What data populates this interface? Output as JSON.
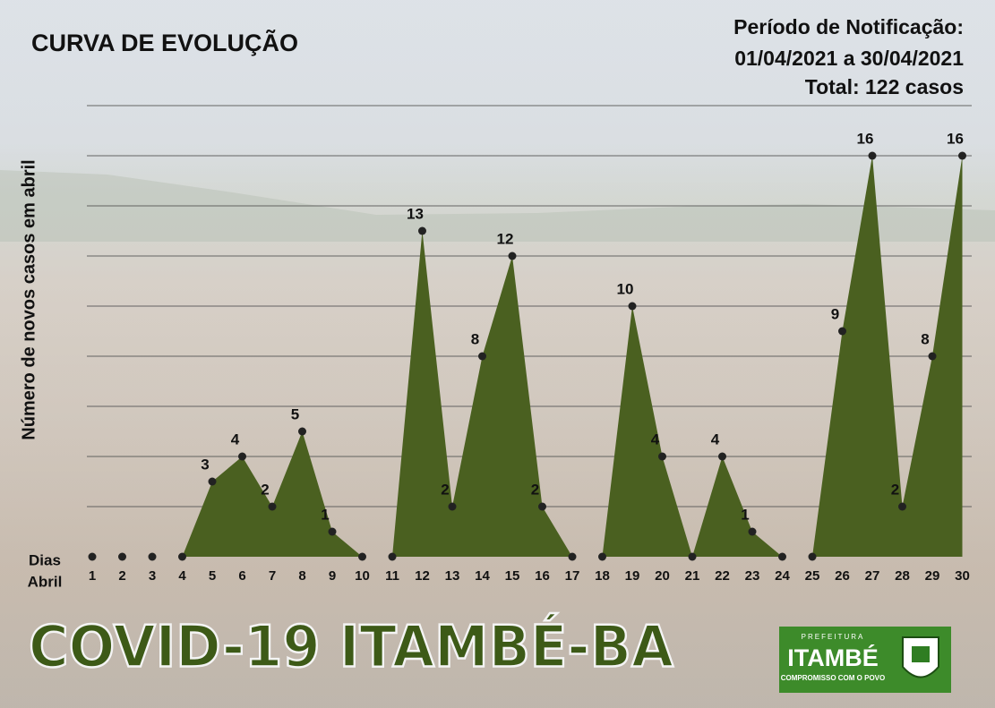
{
  "chart_data": {
    "type": "area",
    "title": "CURVA DE EVOLUÇÃO",
    "subtitle": [
      "Período de Notificação:",
      "01/04/2021 a 30/04/2021",
      "Total: 122 casos"
    ],
    "y_label": "Número de novos casos em abril",
    "x_label": [
      "Dias",
      "Abril"
    ],
    "categories": [
      "1",
      "2",
      "3",
      "4",
      "5",
      "6",
      "7",
      "8",
      "9",
      "10",
      "11",
      "12",
      "13",
      "14",
      "15",
      "16",
      "17",
      "18",
      "19",
      "20",
      "21",
      "22",
      "23",
      "24",
      "25",
      "26",
      "27",
      "28",
      "29",
      "30"
    ],
    "values": [
      0,
      0,
      0,
      0,
      3,
      4,
      2,
      5,
      1,
      0,
      0,
      13,
      2,
      8,
      12,
      2,
      0,
      0,
      10,
      4,
      0,
      4,
      1,
      0,
      0,
      9,
      16,
      2,
      8,
      16
    ],
    "color": "#4a6020",
    "ylim": [
      0,
      18
    ],
    "yticks": [
      2,
      4,
      6,
      8,
      10,
      12,
      14,
      16,
      18
    ],
    "grid": true
  },
  "banner": "COVID-19  ITAMBÉ-BA",
  "logo": {
    "top": "PREFEITURA",
    "name": "ITAMBÉ",
    "slogan": "COMPROMISSO COM O POVO"
  }
}
